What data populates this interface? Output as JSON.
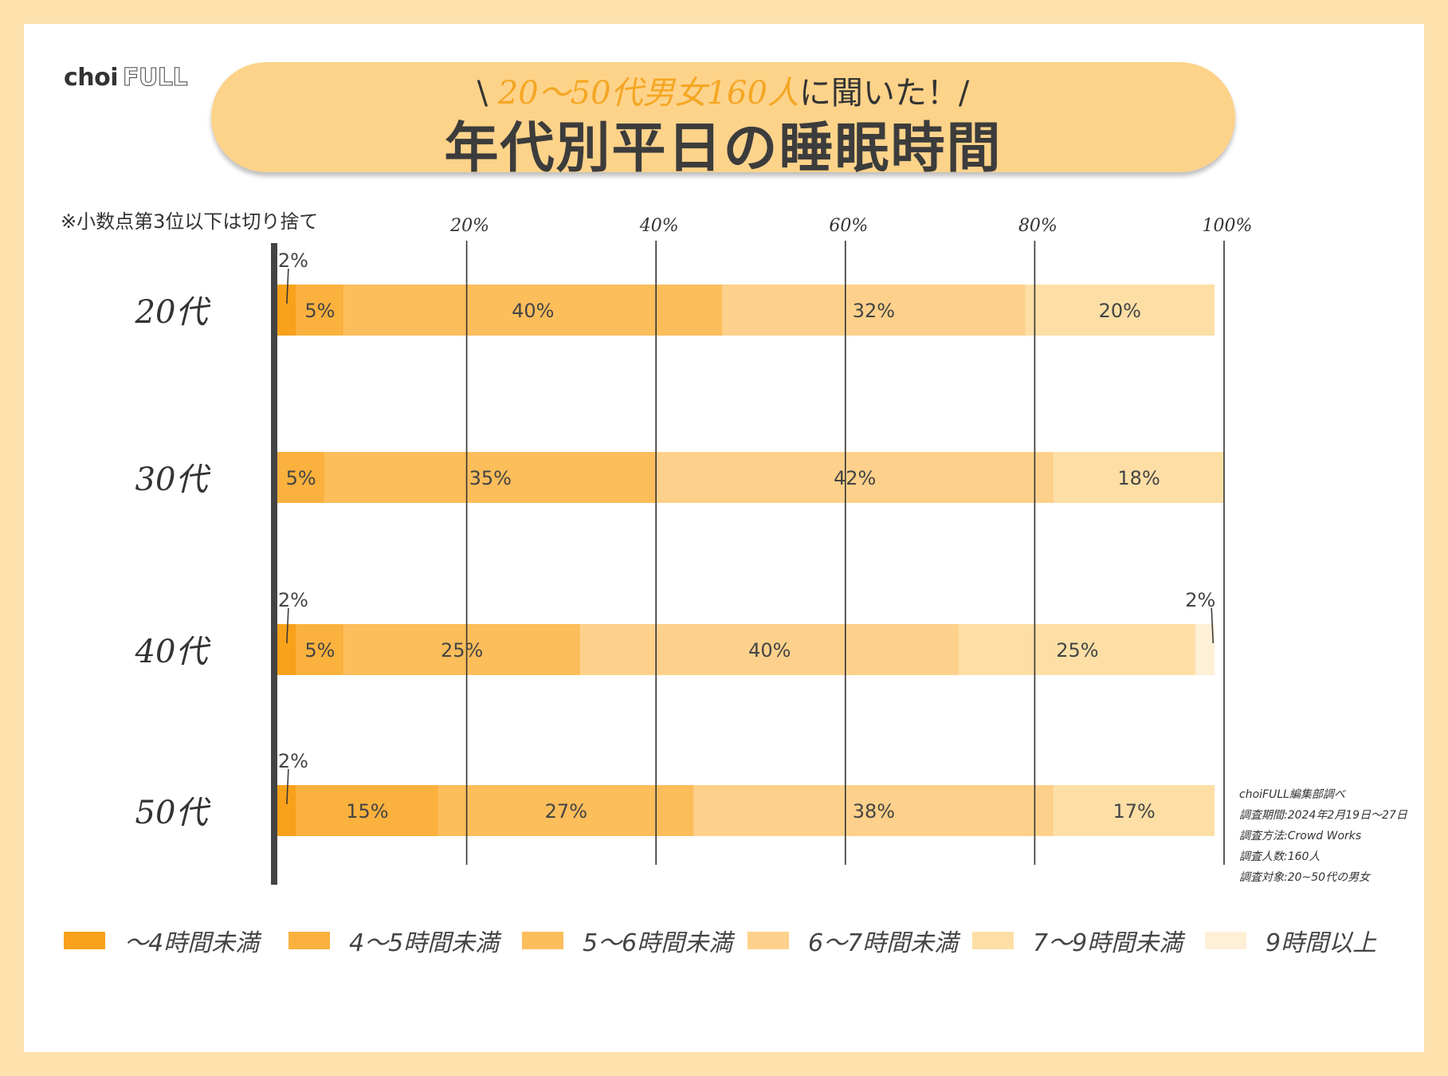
{
  "logo": {
    "part1": "choi",
    "part2": "FULL"
  },
  "header": {
    "subtitle_prefix": "\\ ",
    "subtitle_highlight": "20〜50代男女160人",
    "subtitle_suffix": "に聞いた！/",
    "title": "年代別平日の睡眠時間"
  },
  "note": "※小数点第3位以下は切り捨て",
  "source_lines": [
    "choiFULL編集部調べ",
    "調査期間:2024年2月19日〜27日",
    "調査方法:Crowd Works",
    "調査人数:160人",
    "調査対象:20~50代の男女"
  ],
  "chart_data": {
    "type": "bar",
    "orientation": "horizontal",
    "stacked": true,
    "categories": [
      "20代",
      "30代",
      "40代",
      "50代"
    ],
    "xlim": [
      0,
      100
    ],
    "x_ticks": [
      "20%",
      "40%",
      "60%",
      "80%",
      "100%"
    ],
    "grid": true,
    "legend_position": "bottom",
    "series": [
      {
        "name": "〜4時間未満",
        "color": "#f9a11b",
        "values": [
          2,
          0,
          2,
          2
        ],
        "labels": [
          "2%",
          "",
          "2%",
          "2%"
        ]
      },
      {
        "name": "4〜5時間未満",
        "color": "#fbb13e",
        "values": [
          5,
          5,
          5,
          15
        ],
        "labels": [
          "5%",
          "5%",
          "5%",
          "15%"
        ]
      },
      {
        "name": "5〜6時間未満",
        "color": "#fcbd5b",
        "values": [
          40,
          35,
          25,
          27
        ],
        "labels": [
          "40%",
          "35%",
          "25%",
          "27%"
        ]
      },
      {
        "name": "6〜7時間未満",
        "color": "#fdd18b",
        "values": [
          32,
          42,
          40,
          38
        ],
        "labels": [
          "32%",
          "42%",
          "40%",
          "38%"
        ]
      },
      {
        "name": "7〜9時間未満",
        "color": "#fddfa6",
        "values": [
          20,
          18,
          25,
          17
        ],
        "labels": [
          "20%",
          "18%",
          "25%",
          "17%"
        ]
      },
      {
        "name": "9時間以上",
        "color": "#fef0d6",
        "values": [
          0,
          0,
          2,
          0
        ],
        "labels": [
          "",
          "",
          "2%",
          ""
        ]
      }
    ]
  }
}
